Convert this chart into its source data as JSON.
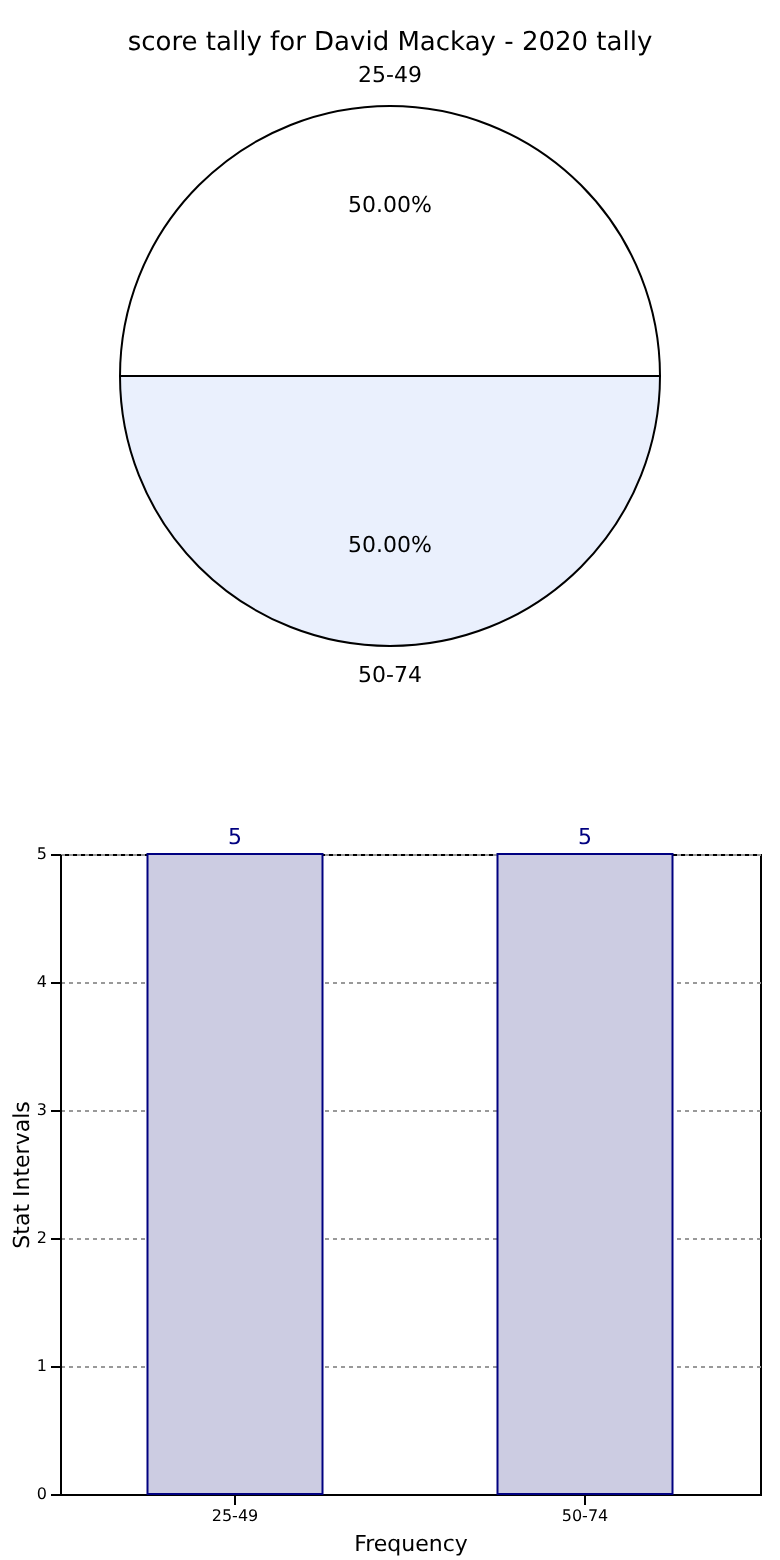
{
  "chart_data": [
    {
      "type": "pie",
      "title": "score tally for David Mackay - 2020 tally",
      "categories": [
        "25-49",
        "50-74"
      ],
      "values": [
        50,
        50
      ],
      "colors": [
        "#ffffff",
        "#eaf0fd"
      ],
      "value_labels": [
        "50.00%",
        "50.00%"
      ],
      "legend": false
    },
    {
      "type": "bar",
      "categories": [
        "25-49",
        "50-74"
      ],
      "values": [
        5,
        5
      ],
      "color": "#cccce2",
      "xlabel": "Frequency",
      "ylabel": "Stat Intervals",
      "ylim": [
        0,
        5
      ],
      "yticks": [
        0,
        1,
        2,
        3,
        4,
        5
      ],
      "grid": true,
      "data_labels": true,
      "legend": false
    }
  ]
}
